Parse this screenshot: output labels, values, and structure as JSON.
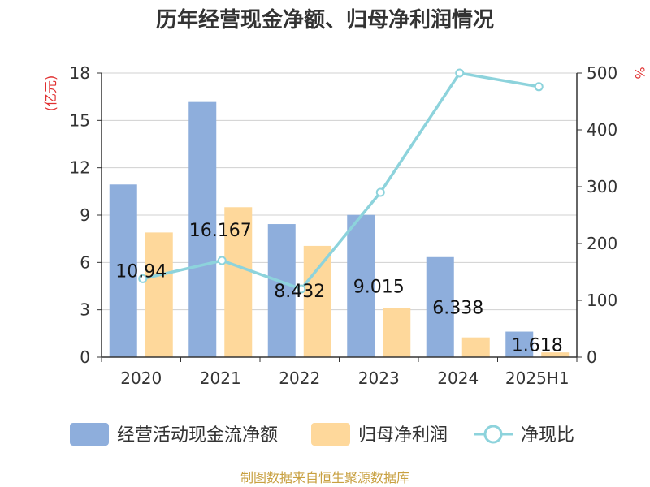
{
  "chart_data": {
    "type": "bar",
    "title": "历年经营现金净额、归母净利润情况",
    "categories": [
      "2020",
      "2021",
      "2022",
      "2023",
      "2024",
      "2025H1"
    ],
    "y_left": {
      "unit": "(亿元)",
      "min": 0,
      "max": 18,
      "ticks": [
        "0",
        "3",
        "6",
        "9",
        "12",
        "15",
        "18"
      ]
    },
    "y_right": {
      "unit": "%",
      "min": 0,
      "max": 500,
      "ticks": [
        "0",
        "100",
        "200",
        "300",
        "400",
        "500"
      ]
    },
    "series": [
      {
        "name": "经营活动现金流净额",
        "type": "bar",
        "axis": "left",
        "color": "#8eaedc",
        "values": [
          10.94,
          16.167,
          8.432,
          9.015,
          6.338,
          1.618
        ],
        "labels": [
          "10.94",
          "16.167",
          "8.432",
          "9.015",
          "6.338",
          "1.618"
        ]
      },
      {
        "name": "归母净利润",
        "type": "bar",
        "axis": "left",
        "color": "#fed89b",
        "values": [
          7.9,
          9.5,
          7.05,
          3.1,
          1.25,
          0.3
        ]
      },
      {
        "name": "净现比",
        "type": "line",
        "axis": "right",
        "color": "#8dd3dc",
        "values": [
          138,
          170,
          120,
          290,
          500,
          476
        ]
      }
    ],
    "grid": true,
    "legend_position": "bottom",
    "source": "制图数据来自恒生聚源数据库",
    "colors": {
      "axis": "#333333",
      "grid": "#d0d0d0",
      "unit": "#e03030",
      "source": "#c8a040"
    }
  }
}
